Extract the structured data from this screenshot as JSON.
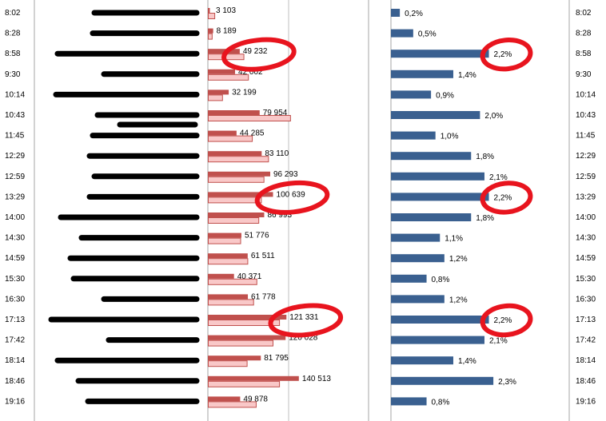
{
  "chart_data": {
    "type": "bar",
    "orientation": "horizontal",
    "categories": [
      "8:02",
      "8:28",
      "8:58",
      "9:30",
      "10:14",
      "10:43",
      "11:45",
      "12:29",
      "12:59",
      "13:29",
      "14:00",
      "14:30",
      "14:59",
      "15:30",
      "16:30",
      "17:13",
      "17:42",
      "18:14",
      "18:46",
      "19:16"
    ],
    "left_panel": {
      "series": [
        {
          "values": [
            3103,
            8189,
            49232,
            42002,
            32199,
            79954,
            44285,
            83110,
            96293,
            100639,
            86993,
            51776,
            61511,
            40371,
            61778,
            121331,
            120028,
            81795,
            140513,
            49878
          ],
          "labels": [
            "3 103",
            "8 189",
            "49 232",
            "42 002",
            "32 199",
            "79 954",
            "44 285",
            "83 110",
            "96 293",
            "100 639",
            "86 993",
            "51 776",
            "61 511",
            "40 371",
            "61 778",
            "121 331",
            "120 028",
            "81 795",
            "140 513",
            "49 878"
          ],
          "color": "#c0504d"
        },
        {
          "values": [
            10000,
            6000,
            55000,
            62000,
            22000,
            127000,
            68000,
            93000,
            86000,
            82000,
            78000,
            50000,
            61000,
            75000,
            70000,
            110000,
            100000,
            60000,
            110000,
            74000
          ],
          "color": "#f9c8c8"
        }
      ],
      "xlim": [
        0,
        200000
      ]
    },
    "right_panel": {
      "series": [
        {
          "values": [
            0.2,
            0.5,
            2.2,
            1.4,
            0.9,
            2.0,
            1.0,
            1.8,
            2.1,
            2.2,
            1.8,
            1.1,
            1.2,
            0.8,
            1.2,
            2.2,
            2.1,
            1.4,
            2.3,
            0.8
          ],
          "labels": [
            "0,2%",
            "0,5%",
            "2,2%",
            "1,4%",
            "0,9%",
            "2,0%",
            "1,0%",
            "1,8%",
            "2,1%",
            "2,2%",
            "1,8%",
            "1,1%",
            "1,2%",
            "0,8%",
            "1,2%",
            "2,2%",
            "2,1%",
            "1,4%",
            "2,3%",
            "0,8%"
          ],
          "color": "#3a6090"
        }
      ],
      "xlim": [
        0,
        4.8
      ]
    },
    "redacted_rows": true,
    "annotations": [
      {
        "type": "circle",
        "color": "#e8141e",
        "panel": "left",
        "category": "8:58"
      },
      {
        "type": "circle",
        "color": "#e8141e",
        "panel": "left",
        "category": "13:29"
      },
      {
        "type": "circle",
        "color": "#e8141e",
        "panel": "left",
        "category": "17:13"
      },
      {
        "type": "circle",
        "color": "#e8141e",
        "panel": "right",
        "category": "8:58"
      },
      {
        "type": "circle",
        "color": "#e8141e",
        "panel": "right",
        "category": "13:29"
      },
      {
        "type": "circle",
        "color": "#e8141e",
        "panel": "right",
        "category": "17:13"
      }
    ],
    "grid": false
  }
}
